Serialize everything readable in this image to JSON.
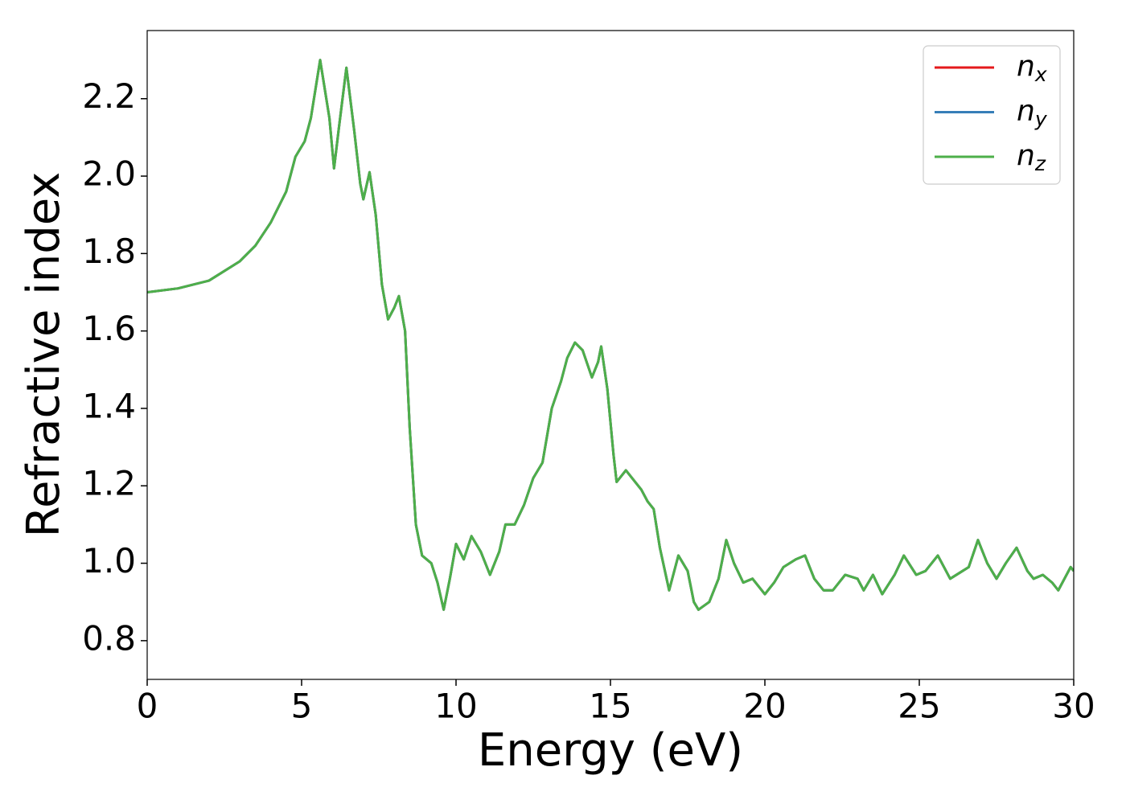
{
  "chart_data": {
    "type": "line",
    "xlabel": "Energy (eV)",
    "ylabel": "Refractive index",
    "x": [
      0,
      1,
      2,
      3,
      3.5,
      4,
      4.5,
      4.8,
      5.1,
      5.3,
      5.6,
      5.9,
      6.05,
      6.2,
      6.45,
      6.7,
      6.9,
      7.0,
      7.2,
      7.4,
      7.6,
      7.8,
      8.0,
      8.15,
      8.35,
      8.5,
      8.7,
      8.9,
      9.2,
      9.4,
      9.6,
      9.8,
      10.0,
      10.25,
      10.5,
      10.8,
      11.1,
      11.4,
      11.6,
      11.9,
      12.2,
      12.5,
      12.8,
      13.1,
      13.4,
      13.6,
      13.85,
      14.1,
      14.4,
      14.6,
      14.7,
      14.9,
      15.1,
      15.2,
      15.5,
      15.8,
      16.0,
      16.2,
      16.4,
      16.6,
      16.9,
      17.2,
      17.5,
      17.7,
      17.85,
      18.2,
      18.5,
      18.75,
      19.0,
      19.3,
      19.6,
      20.0,
      20.3,
      20.6,
      21.0,
      21.3,
      21.6,
      21.9,
      22.2,
      22.6,
      23.0,
      23.2,
      23.5,
      23.8,
      24.2,
      24.5,
      24.9,
      25.2,
      25.6,
      26.0,
      26.4,
      26.6,
      26.9,
      27.2,
      27.5,
      27.8,
      28.15,
      28.5,
      28.7,
      29.0,
      29.3,
      29.5,
      29.7,
      29.9,
      30
    ],
    "series": [
      {
        "name": "nx",
        "color": "#e41a1c",
        "values": [
          1.7,
          1.71,
          1.73,
          1.78,
          1.82,
          1.88,
          1.96,
          2.05,
          2.09,
          2.15,
          2.3,
          2.15,
          2.02,
          2.12,
          2.28,
          2.12,
          1.98,
          1.94,
          2.01,
          1.9,
          1.72,
          1.63,
          1.66,
          1.69,
          1.6,
          1.35,
          1.1,
          1.02,
          1.0,
          0.95,
          0.88,
          0.96,
          1.05,
          1.01,
          1.07,
          1.03,
          0.97,
          1.03,
          1.1,
          1.1,
          1.15,
          1.22,
          1.26,
          1.4,
          1.47,
          1.53,
          1.57,
          1.55,
          1.48,
          1.52,
          1.56,
          1.45,
          1.28,
          1.21,
          1.24,
          1.21,
          1.19,
          1.16,
          1.14,
          1.04,
          0.93,
          1.02,
          0.98,
          0.9,
          0.88,
          0.9,
          0.96,
          1.06,
          1.0,
          0.95,
          0.96,
          0.92,
          0.95,
          0.99,
          1.01,
          1.02,
          0.96,
          0.93,
          0.93,
          0.97,
          0.96,
          0.93,
          0.97,
          0.92,
          0.97,
          1.02,
          0.97,
          0.98,
          1.02,
          0.96,
          0.98,
          0.99,
          1.06,
          1.0,
          0.96,
          1.0,
          1.04,
          0.98,
          0.96,
          0.97,
          0.95,
          0.93,
          0.96,
          0.99,
          0.98
        ]
      },
      {
        "name": "ny",
        "color": "#377eb8",
        "values": [
          1.7,
          1.71,
          1.73,
          1.78,
          1.82,
          1.88,
          1.96,
          2.05,
          2.09,
          2.15,
          2.3,
          2.15,
          2.02,
          2.12,
          2.28,
          2.12,
          1.98,
          1.94,
          2.01,
          1.9,
          1.72,
          1.63,
          1.66,
          1.69,
          1.6,
          1.35,
          1.1,
          1.02,
          1.0,
          0.95,
          0.88,
          0.96,
          1.05,
          1.01,
          1.07,
          1.03,
          0.97,
          1.03,
          1.1,
          1.1,
          1.15,
          1.22,
          1.26,
          1.4,
          1.47,
          1.53,
          1.57,
          1.55,
          1.48,
          1.52,
          1.56,
          1.45,
          1.28,
          1.21,
          1.24,
          1.21,
          1.19,
          1.16,
          1.14,
          1.04,
          0.93,
          1.02,
          0.98,
          0.9,
          0.88,
          0.9,
          0.96,
          1.06,
          1.0,
          0.95,
          0.96,
          0.92,
          0.95,
          0.99,
          1.01,
          1.02,
          0.96,
          0.93,
          0.93,
          0.97,
          0.96,
          0.93,
          0.97,
          0.92,
          0.97,
          1.02,
          0.97,
          0.98,
          1.02,
          0.96,
          0.98,
          0.99,
          1.06,
          1.0,
          0.96,
          1.0,
          1.04,
          0.98,
          0.96,
          0.97,
          0.95,
          0.93,
          0.96,
          0.99,
          0.98
        ]
      },
      {
        "name": "nz",
        "color": "#4daf4a",
        "values": [
          1.7,
          1.71,
          1.73,
          1.78,
          1.82,
          1.88,
          1.96,
          2.05,
          2.09,
          2.15,
          2.3,
          2.15,
          2.02,
          2.12,
          2.28,
          2.12,
          1.98,
          1.94,
          2.01,
          1.9,
          1.72,
          1.63,
          1.66,
          1.69,
          1.6,
          1.35,
          1.1,
          1.02,
          1.0,
          0.95,
          0.88,
          0.96,
          1.05,
          1.01,
          1.07,
          1.03,
          0.97,
          1.03,
          1.1,
          1.1,
          1.15,
          1.22,
          1.26,
          1.4,
          1.47,
          1.53,
          1.57,
          1.55,
          1.48,
          1.52,
          1.56,
          1.45,
          1.28,
          1.21,
          1.24,
          1.21,
          1.19,
          1.16,
          1.14,
          1.04,
          0.93,
          1.02,
          0.98,
          0.9,
          0.88,
          0.9,
          0.96,
          1.06,
          1.0,
          0.95,
          0.96,
          0.92,
          0.95,
          0.99,
          1.01,
          1.02,
          0.96,
          0.93,
          0.93,
          0.97,
          0.96,
          0.93,
          0.97,
          0.92,
          0.97,
          1.02,
          0.97,
          0.98,
          1.02,
          0.96,
          0.98,
          0.99,
          1.06,
          1.0,
          0.96,
          1.0,
          1.04,
          0.98,
          0.96,
          0.97,
          0.95,
          0.93,
          0.96,
          0.99,
          0.98
        ]
      }
    ],
    "xlim": [
      0,
      30
    ],
    "xticks": [
      0,
      5,
      10,
      15,
      20,
      25,
      30
    ],
    "ylim": [
      0.7,
      2.376
    ],
    "yticks": [
      0.8,
      {
        "value": 1.0,
        "label": "1.0"
      },
      1.2,
      1.4,
      1.6,
      1.8,
      {
        "value": 2.0,
        "label": "2.0"
      },
      2.2
    ],
    "legend": "upper right",
    "grid": false
  }
}
